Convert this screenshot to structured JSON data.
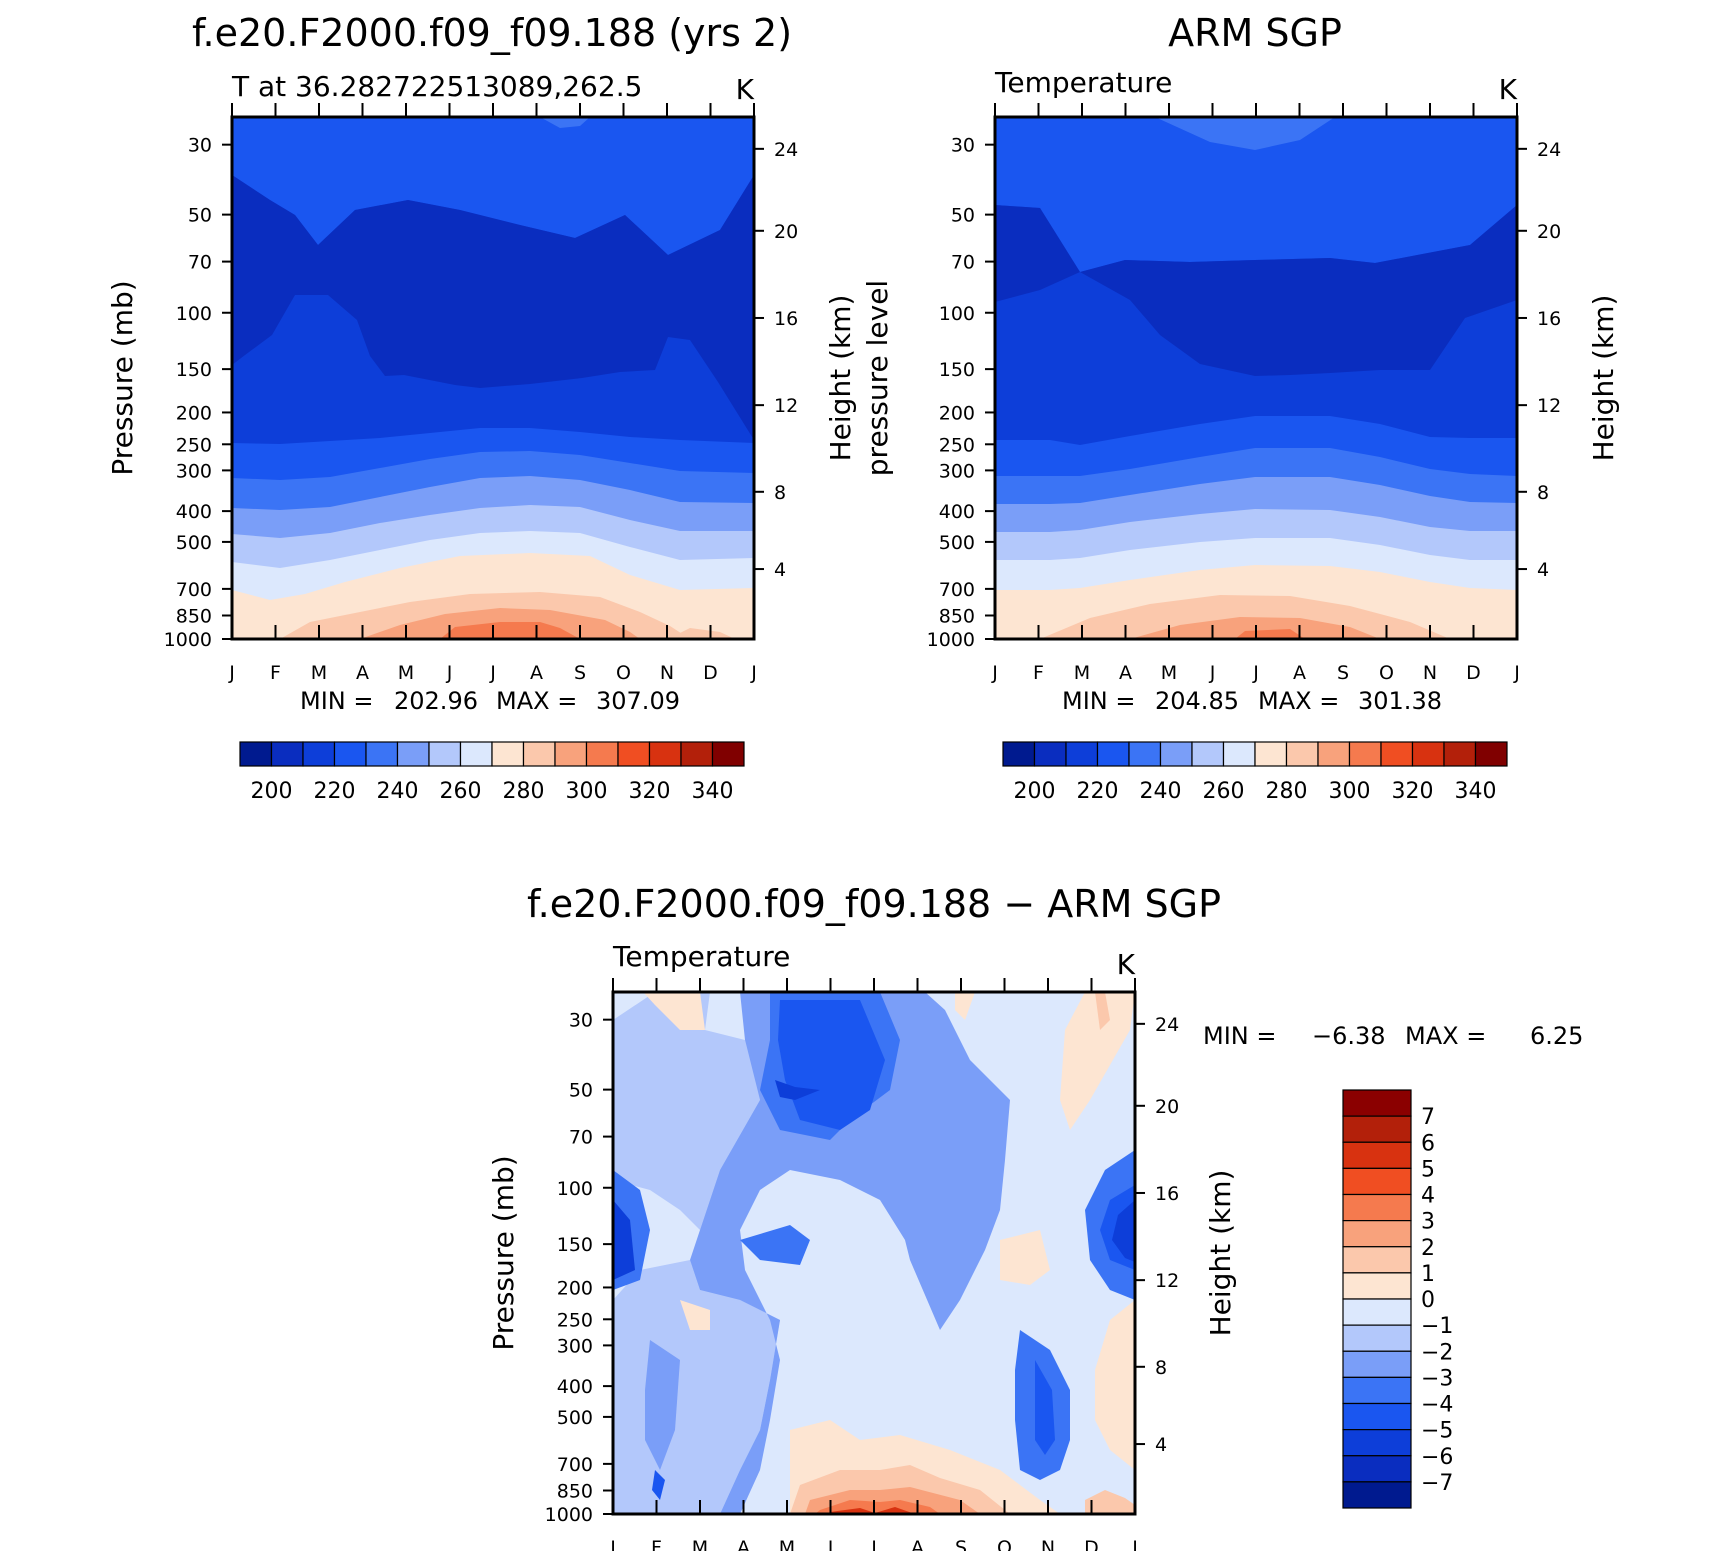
{
  "chart_data": [
    {
      "id": "model",
      "type": "heatmap",
      "title": "f.e20.F2000.f09_f09.188 (yrs 2)",
      "subtitle": "T at 36.282722513089,262.5",
      "units": "K",
      "ylabel": "Pressure (mb)",
      "y2label": "Height (km)",
      "months": [
        "J",
        "F",
        "M",
        "A",
        "M",
        "J",
        "J",
        "A",
        "S",
        "O",
        "N",
        "D",
        "J"
      ],
      "pressure_ticks": [
        "30",
        "50",
        "70",
        "100",
        "150",
        "200",
        "250",
        "300",
        "400",
        "500",
        "700",
        "850",
        "1000"
      ],
      "height_ticks": [
        "24",
        "20",
        "16",
        "12",
        "8",
        "4"
      ],
      "min_label": "MIN =",
      "min_value": "202.96",
      "max_label": "MAX =",
      "max_value": "307.09",
      "colorbar_labels": [
        "200",
        "220",
        "240",
        "260",
        "280",
        "300",
        "320",
        "340"
      ],
      "colorbar_colors": [
        "#001a8f",
        "#0a2dbf",
        "#0d3ed9",
        "#1a56f0",
        "#3b74f5",
        "#7a9ef8",
        "#b3c8fb",
        "#dce8fd",
        "#fde5d2",
        "#fbc8ac",
        "#f8a27c",
        "#f57a4e",
        "#f04e22",
        "#d83210",
        "#b3200a",
        "#800000"
      ]
    },
    {
      "id": "obs",
      "type": "heatmap",
      "title": "ARM SGP",
      "subtitle": "Temperature",
      "units": "K",
      "ylabel": "pressure level",
      "y2label": "Height (km)",
      "months": [
        "J",
        "F",
        "M",
        "A",
        "M",
        "J",
        "J",
        "A",
        "S",
        "O",
        "N",
        "D",
        "J"
      ],
      "pressure_ticks": [
        "30",
        "50",
        "70",
        "100",
        "150",
        "200",
        "250",
        "300",
        "400",
        "500",
        "700",
        "850",
        "1000"
      ],
      "height_ticks": [
        "24",
        "20",
        "16",
        "12",
        "8",
        "4"
      ],
      "min_label": "MIN =",
      "min_value": "204.85",
      "max_label": "MAX =",
      "max_value": "301.38",
      "colorbar_labels": [
        "200",
        "220",
        "240",
        "260",
        "280",
        "300",
        "320",
        "340"
      ],
      "colorbar_colors": [
        "#001a8f",
        "#0a2dbf",
        "#0d3ed9",
        "#1a56f0",
        "#3b74f5",
        "#7a9ef8",
        "#b3c8fb",
        "#dce8fd",
        "#fde5d2",
        "#fbc8ac",
        "#f8a27c",
        "#f57a4e",
        "#f04e22",
        "#d83210",
        "#b3200a",
        "#800000"
      ]
    },
    {
      "id": "diff",
      "type": "heatmap",
      "title": "f.e20.F2000.f09_f09.188 − ARM SGP",
      "subtitle": "Temperature",
      "units": "K",
      "ylabel": "Pressure (mb)",
      "y2label": "Height (km)",
      "months": [
        "J",
        "F",
        "M",
        "A",
        "M",
        "J",
        "J",
        "A",
        "S",
        "O",
        "N",
        "D",
        "J"
      ],
      "pressure_ticks": [
        "30",
        "50",
        "70",
        "100",
        "150",
        "200",
        "250",
        "300",
        "400",
        "500",
        "700",
        "850",
        "1000"
      ],
      "height_ticks": [
        "24",
        "20",
        "16",
        "12",
        "8",
        "4"
      ],
      "min_label": "MIN =",
      "min_value": "−6.38",
      "max_label": "MAX =",
      "max_value": "6.25",
      "colorbar_labels": [
        "7",
        "6",
        "5",
        "4",
        "3",
        "2",
        "1",
        "0",
        "−1",
        "−2",
        "−3",
        "−4",
        "−5",
        "−6",
        "−7"
      ],
      "colorbar_colors": [
        "#8b0000",
        "#b3200a",
        "#d83210",
        "#f04e22",
        "#f57a4e",
        "#f8a27c",
        "#fbc8ac",
        "#fde5d2",
        "#dce8fd",
        "#b3c8fb",
        "#7a9ef8",
        "#3b74f5",
        "#1a56f0",
        "#0d3ed9",
        "#0a2dbf",
        "#001a8f"
      ]
    }
  ]
}
